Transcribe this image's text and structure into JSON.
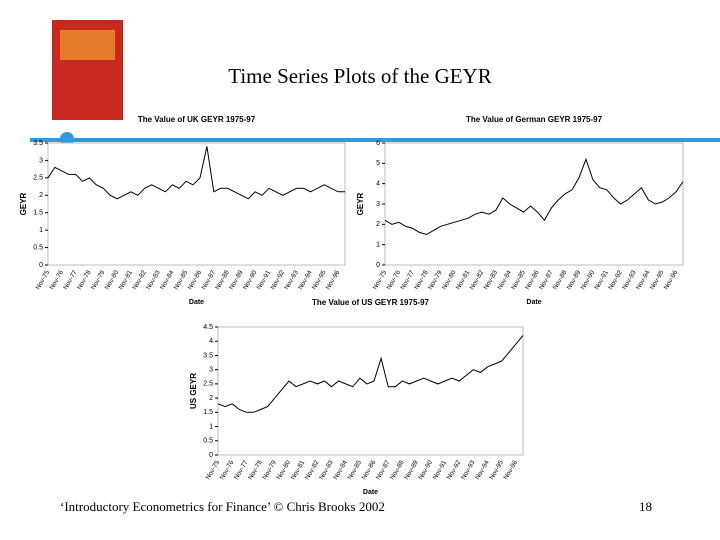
{
  "slide": {
    "title": "Time Series Plots of the GEYR",
    "footer": "‘Introductory Econometrics for Finance’ © Chris Brooks 2002",
    "page_number": "18"
  },
  "chart_data": [
    {
      "type": "line",
      "title": "The Value of UK GEYR 1975-97",
      "y_label": "GEYR",
      "x_label": "Date",
      "color": "#000000",
      "categories": [
        "Nov-75",
        null,
        "Nov-76",
        null,
        "Nov-77",
        null,
        "Nov-78",
        null,
        "Nov-79",
        null,
        "Nov-80",
        null,
        "Nov-81",
        null,
        "Nov-82",
        null,
        "Nov-83",
        null,
        "Nov-84",
        null,
        "Nov-85",
        null,
        "Nov-86",
        null,
        "Nov-87",
        null,
        "Nov-88",
        null,
        "Nov-89",
        null,
        "Nov-90",
        null,
        "Nov-91",
        null,
        "Nov-92",
        null,
        "Nov-93",
        null,
        "Nov-94",
        null,
        "Nov-95",
        null,
        "Nov-96",
        null
      ],
      "values": [
        2.5,
        2.8,
        2.7,
        2.6,
        2.6,
        2.4,
        2.5,
        2.3,
        2.2,
        2.0,
        1.9,
        2.0,
        2.1,
        2.0,
        2.2,
        2.3,
        2.2,
        2.1,
        2.3,
        2.2,
        2.4,
        2.3,
        2.5,
        3.4,
        2.1,
        2.2,
        2.2,
        2.1,
        2.0,
        1.9,
        2.1,
        2.0,
        2.2,
        2.1,
        2.0,
        2.1,
        2.2,
        2.2,
        2.1,
        2.2,
        2.3,
        2.2,
        2.1,
        2.1
      ],
      "ylim": [
        0,
        3.5
      ],
      "yticks": [
        0,
        0.5,
        1,
        1.5,
        2,
        2.5,
        3,
        3.5
      ],
      "grid": false
    },
    {
      "type": "line",
      "title": "The Value of German GEYR 1975-97",
      "y_label": "GEYR",
      "x_label": "Date",
      "color": "#000000",
      "categories": [
        "Nov-75",
        null,
        "Nov-76",
        null,
        "Nov-77",
        null,
        "Nov-78",
        null,
        "Nov-79",
        null,
        "Nov-80",
        null,
        "Nov-81",
        null,
        "Nov-82",
        null,
        "Nov-83",
        null,
        "Nov-84",
        null,
        "Nov-85",
        null,
        "Nov-86",
        null,
        "Nov-87",
        null,
        "Nov-88",
        null,
        "Nov-89",
        null,
        "Nov-90",
        null,
        "Nov-91",
        null,
        "Nov-92",
        null,
        "Nov-93",
        null,
        "Nov-94",
        null,
        "Nov-95",
        null,
        "Nov-96",
        null
      ],
      "values": [
        2.2,
        2.0,
        2.1,
        1.9,
        1.8,
        1.6,
        1.5,
        1.7,
        1.9,
        2.0,
        2.1,
        2.2,
        2.3,
        2.5,
        2.6,
        2.5,
        2.7,
        3.3,
        3.0,
        2.8,
        2.6,
        2.9,
        2.6,
        2.2,
        2.8,
        3.2,
        3.5,
        3.7,
        4.3,
        5.2,
        4.2,
        3.8,
        3.7,
        3.3,
        3.0,
        3.2,
        3.5,
        3.8,
        3.2,
        3.0,
        3.1,
        3.3,
        3.6,
        4.1
      ],
      "ylim": [
        0,
        6
      ],
      "yticks": [
        0,
        1,
        2,
        3,
        4,
        5,
        6
      ],
      "grid": false
    },
    {
      "type": "line",
      "title": "The Value of US GEYR 1975-97",
      "y_label": "US GEYR",
      "x_label": "Date",
      "color": "#000000",
      "categories": [
        "Nov-75",
        null,
        "Nov-76",
        null,
        "Nov-77",
        null,
        "Nov-78",
        null,
        "Nov-79",
        null,
        "Nov-80",
        null,
        "Nov-81",
        null,
        "Nov-82",
        null,
        "Nov-83",
        null,
        "Nov-84",
        null,
        "Nov-85",
        null,
        "Nov-86",
        null,
        "Nov-87",
        null,
        "Nov-88",
        null,
        "Nov-89",
        null,
        "Nov-90",
        null,
        "Nov-91",
        null,
        "Nov-92",
        null,
        "Nov-93",
        null,
        "Nov-94",
        null,
        "Nov-95",
        null,
        "Nov-96",
        null
      ],
      "values": [
        1.8,
        1.7,
        1.8,
        1.6,
        1.5,
        1.5,
        1.6,
        1.7,
        2.0,
        2.3,
        2.6,
        2.4,
        2.5,
        2.6,
        2.5,
        2.6,
        2.4,
        2.6,
        2.5,
        2.4,
        2.7,
        2.5,
        2.6,
        3.4,
        2.4,
        2.4,
        2.6,
        2.5,
        2.6,
        2.7,
        2.6,
        2.5,
        2.6,
        2.7,
        2.6,
        2.8,
        3.0,
        2.9,
        3.1,
        3.2,
        3.3,
        3.6,
        3.9,
        4.2
      ],
      "ylim": [
        0,
        4.5
      ],
      "yticks": [
        0,
        0.5,
        1,
        1.5,
        2,
        2.5,
        3,
        3.5,
        4,
        4.5
      ],
      "grid": false
    }
  ]
}
